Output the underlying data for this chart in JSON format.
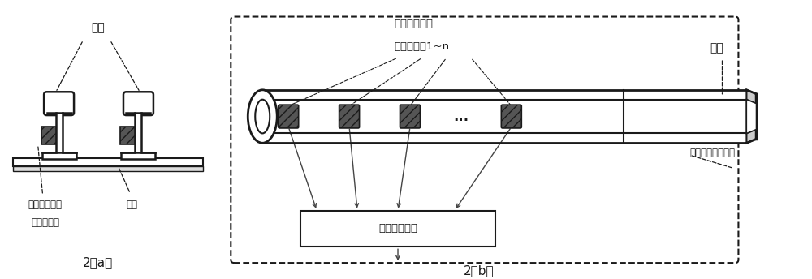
{
  "background_color": "#ffffff",
  "fig_width": 10.0,
  "fig_height": 3.44,
  "label_gangtui": "钢轨",
  "label_sensor_left_line1": "车轮传感器或",
  "label_sensor_left_line2": "剪力传感器",
  "label_zhenzhen": "轨枕",
  "label_sensor_top_line1": "车轮传感器或",
  "label_sensor_top_line2": "剪力传感器1~n",
  "label_gangtui_right": "钢轨",
  "label_detection_system": "机车位置检测系统",
  "label_detection_module": "机车检测模块",
  "label_2a": "2（a）",
  "label_2b": "2（b）",
  "text_color": "#1a1a1a",
  "line_color": "#1a1a1a",
  "sensor_fill": "#555555",
  "dots_text": "……"
}
